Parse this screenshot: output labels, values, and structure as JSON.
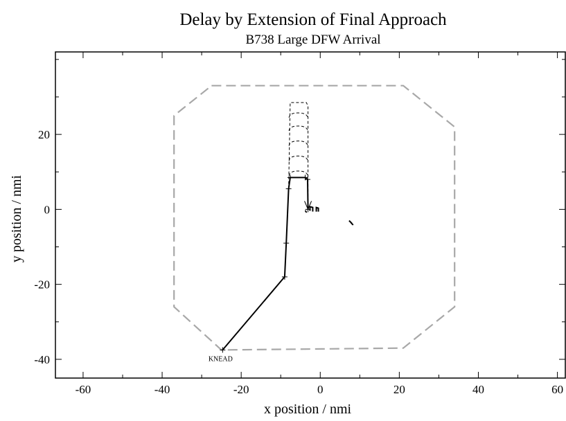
{
  "chart_data": {
    "type": "line",
    "title": "Delay by Extension of Final Approach",
    "subtitle": "B738 Large DFW Arrival",
    "xlabel": "x position / nmi",
    "ylabel": "y position / nmi",
    "xlim": [
      -67,
      62
    ],
    "ylim": [
      -45,
      42
    ],
    "xticks": [
      -60,
      -40,
      -20,
      0,
      20,
      40,
      60
    ],
    "yticks": [
      -40,
      -20,
      0,
      20
    ],
    "grid": false,
    "series": [
      {
        "style": "dashed-gray",
        "points": [
          [
            -27.5,
            33
          ],
          [
            21,
            33
          ],
          [
            34,
            22
          ],
          [
            34,
            -26
          ],
          [
            21,
            -37
          ],
          [
            -25,
            -37.5
          ],
          [
            -37,
            -26
          ],
          [
            -37,
            25
          ],
          [
            -27.5,
            33
          ]
        ]
      },
      {
        "style": "solid-black",
        "points": [
          [
            -24.7,
            -37.5
          ],
          [
            -9,
            -18
          ],
          [
            -8.6,
            -9
          ],
          [
            -8,
            5.5
          ],
          [
            -7.6,
            8.5
          ],
          [
            -3.8,
            8.5
          ],
          [
            -3.2,
            8
          ],
          [
            -3.1,
            0
          ]
        ]
      },
      {
        "style": "dashed-black",
        "points": [
          [
            -8,
            5.5
          ],
          [
            -7.6,
            28.5
          ],
          [
            -3.5,
            28.5
          ],
          [
            -3.1,
            27.5
          ],
          [
            -3.1,
            0
          ]
        ]
      }
    ],
    "annotations": [
      {
        "text": "KNEAD",
        "x": -24.7,
        "y": -37.5
      }
    ]
  }
}
